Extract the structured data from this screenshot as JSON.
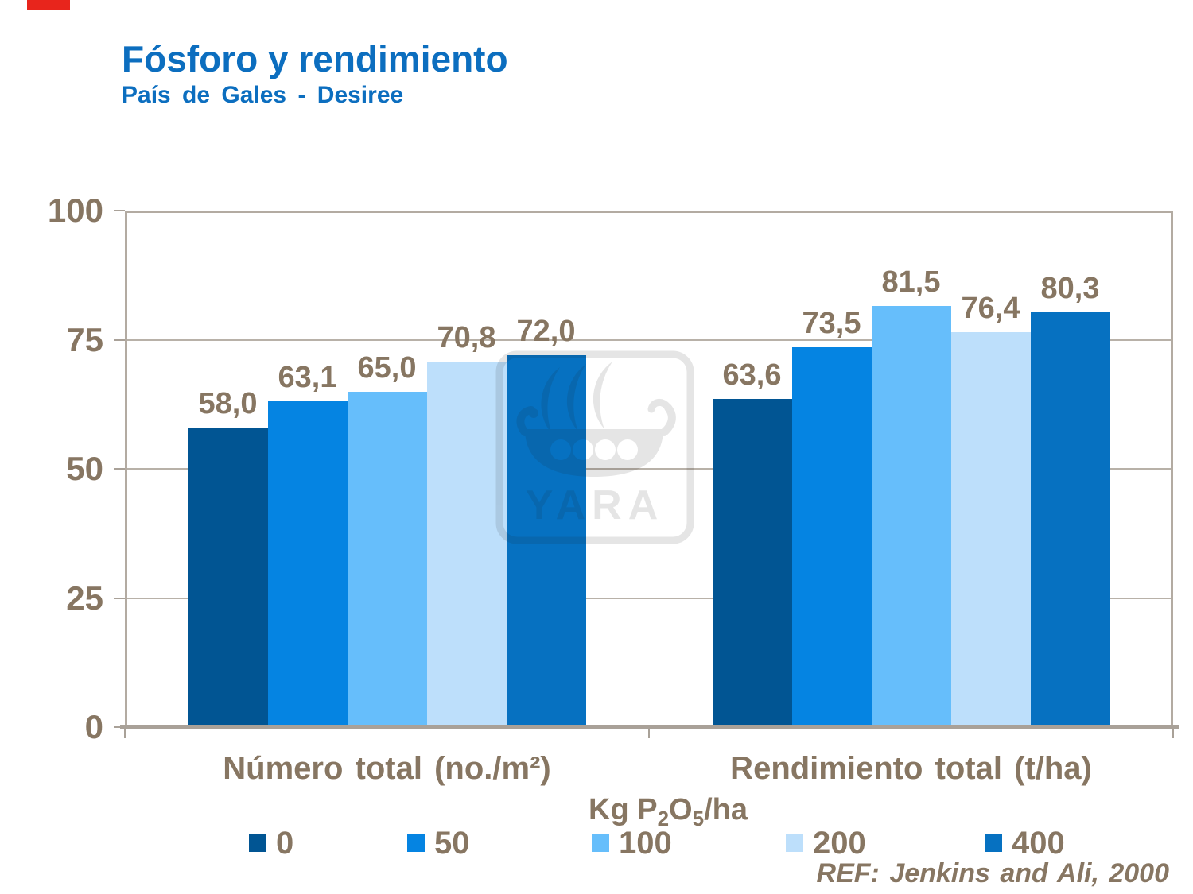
{
  "page": {
    "title": "Fósforo y rendimiento",
    "subtitle": "País de Gales - Desiree",
    "reference": "REF: Jenkins and Ali, 2000"
  },
  "watermark": {
    "text": "YARA"
  },
  "axis_title": {
    "pre": "Kg P",
    "sub1": "2",
    "mid": "O",
    "sub2": "5",
    "post": "/ha"
  },
  "chart_data": {
    "type": "bar",
    "title": "Fósforo y rendimiento",
    "subtitle": "País de Gales - Desiree",
    "categories": [
      "Número total (no./m²)",
      "Rendimiento total (t/ha)"
    ],
    "series": [
      {
        "name": "0",
        "color": "#015593",
        "values": [
          58.0,
          63.6
        ]
      },
      {
        "name": "50",
        "color": "#0584e2",
        "values": [
          63.1,
          73.5
        ]
      },
      {
        "name": "100",
        "color": "#66befb",
        "values": [
          65.0,
          81.5
        ]
      },
      {
        "name": "200",
        "color": "#bddffb",
        "values": [
          70.8,
          76.4
        ]
      },
      {
        "name": "400",
        "color": "#0671c1",
        "values": [
          72.0,
          80.3
        ]
      }
    ],
    "data_labels": [
      [
        "58,0",
        "63,1",
        "65,0",
        "70,8",
        "72,0"
      ],
      [
        "63,6",
        "73,5",
        "81,5",
        "76,4",
        "80,3"
      ]
    ],
    "xlabel": "Kg P2O5/ha",
    "ylabel": "",
    "ylim": [
      0,
      100
    ],
    "yticks": [
      0,
      25,
      50,
      75,
      100
    ],
    "grid": true,
    "decimal_separator": ",",
    "legend_position": "bottom",
    "legend_labels": [
      "0",
      "50",
      "100",
      "200",
      "400"
    ]
  },
  "colors": {
    "title_blue": "#0c6ebf",
    "text_brown": "#877662",
    "frame_tan": "#b3aba2",
    "accent_red": "#e8251c"
  }
}
